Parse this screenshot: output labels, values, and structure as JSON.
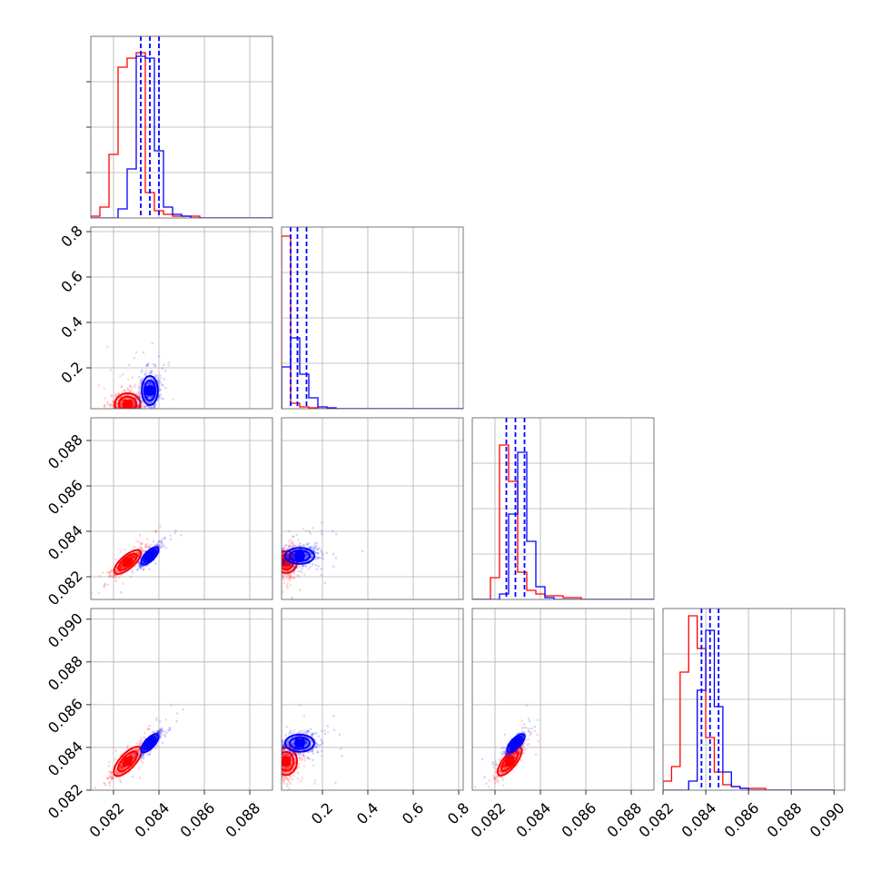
{
  "chart_data": {
    "type": "corner",
    "n_params": 4,
    "grid": true,
    "series": [
      {
        "color": "#ff0000"
      },
      {
        "color": "#0000ff"
      }
    ],
    "params": [
      {
        "range": [
          0.081,
          0.089
        ],
        "ticks": [
          0.082,
          0.084,
          0.086,
          0.088
        ],
        "tick_labels": [
          "0.082",
          "0.084",
          "0.086",
          "0.088"
        ]
      },
      {
        "range": [
          0.02,
          0.82
        ],
        "ticks": [
          0.2,
          0.4,
          0.6,
          0.8
        ],
        "tick_labels": [
          "0.2",
          "0.4",
          "0.6",
          "0.8"
        ]
      },
      {
        "range": [
          0.081,
          0.089
        ],
        "ticks": [
          0.082,
          0.084,
          0.086,
          0.088
        ],
        "tick_labels": [
          "0.082",
          "0.084",
          "0.086",
          "0.088"
        ]
      },
      {
        "range": [
          0.082,
          0.0905
        ],
        "ticks": [
          0.082,
          0.084,
          0.086,
          0.088,
          0.09
        ],
        "tick_labels": [
          "0.082",
          "0.084",
          "0.086",
          "0.088",
          "0.090"
        ]
      }
    ],
    "quantiles": [
      [
        0.0832,
        0.0836,
        0.084
      ],
      [
        0.06,
        0.09,
        0.13
      ],
      [
        0.0825,
        0.0829,
        0.0833
      ],
      [
        0.0838,
        0.0842,
        0.0846
      ]
    ],
    "histograms": [
      {
        "bins": [
          0.081,
          0.0814,
          0.0818,
          0.0822,
          0.0826,
          0.083,
          0.0834,
          0.0838,
          0.0842,
          0.0846,
          0.085,
          0.0854,
          0.0858,
          0.0862,
          0.0866,
          0.087,
          0.0874,
          0.0878,
          0.0882,
          0.0886,
          0.089
        ],
        "red": [
          0.01,
          0.06,
          0.35,
          0.83,
          0.88,
          0.91,
          0.14,
          0.04,
          0.02,
          0.01,
          0.01,
          0.01,
          0.0,
          0.0,
          0.0,
          0.0,
          0.0,
          0.0,
          0.0,
          0.0
        ],
        "blue": [
          0.0,
          0.0,
          0.0,
          0.05,
          0.27,
          0.89,
          0.88,
          0.37,
          0.06,
          0.02,
          0.01,
          0.0,
          0.0,
          0.0,
          0.0,
          0.0,
          0.0,
          0.0,
          0.0,
          0.0
        ]
      },
      {
        "bins": [
          0.02,
          0.06,
          0.1,
          0.14,
          0.18,
          0.22,
          0.26,
          0.3,
          0.34,
          0.38,
          0.42,
          0.46,
          0.5,
          0.54,
          0.58,
          0.62,
          0.66,
          0.7,
          0.74,
          0.78,
          0.82
        ],
        "red": [
          0.95,
          0.03,
          0.01,
          0.005,
          0.0,
          0.0,
          0.0,
          0.0,
          0.0,
          0.0,
          0.0,
          0.0,
          0.0,
          0.0,
          0.0,
          0.0,
          0.0,
          0.0,
          0.0,
          0.0
        ],
        "blue": [
          0.23,
          0.39,
          0.19,
          0.06,
          0.01,
          0.005,
          0.0,
          0.0,
          0.0,
          0.0,
          0.0,
          0.0,
          0.0,
          0.0,
          0.0,
          0.0,
          0.0,
          0.0,
          0.0,
          0.0
        ]
      },
      {
        "bins": [
          0.081,
          0.0814,
          0.0818,
          0.0822,
          0.0826,
          0.083,
          0.0834,
          0.0838,
          0.0842,
          0.0846,
          0.085,
          0.0854,
          0.0858,
          0.0862,
          0.0866,
          0.087,
          0.0874,
          0.0878,
          0.0882,
          0.0886,
          0.089
        ],
        "red": [
          0.0,
          0.0,
          0.12,
          0.85,
          0.65,
          0.15,
          0.05,
          0.03,
          0.02,
          0.02,
          0.01,
          0.01,
          0.0,
          0.0,
          0.0,
          0.0,
          0.0,
          0.0,
          0.0,
          0.0
        ],
        "blue": [
          0.0,
          0.0,
          0.0,
          0.03,
          0.47,
          0.81,
          0.32,
          0.07,
          0.01,
          0.0,
          0.0,
          0.0,
          0.0,
          0.0,
          0.0,
          0.0,
          0.0,
          0.0,
          0.0,
          0.0
        ]
      },
      {
        "bins": [
          0.082,
          0.0824,
          0.0828,
          0.0832,
          0.0836,
          0.084,
          0.0844,
          0.0848,
          0.0852,
          0.0856,
          0.086,
          0.0864,
          0.0868,
          0.0872,
          0.0876,
          0.088,
          0.0884,
          0.0888,
          0.0892,
          0.0896,
          0.09
        ],
        "red": [
          0.05,
          0.13,
          0.65,
          0.96,
          0.78,
          0.29,
          0.1,
          0.03,
          0.02,
          0.01,
          0.01,
          0.01,
          0.0,
          0.0,
          0.0,
          0.0,
          0.0,
          0.0,
          0.0,
          0.0
        ],
        "blue": [
          0.0,
          0.0,
          0.0,
          0.05,
          0.55,
          0.88,
          0.46,
          0.1,
          0.02,
          0.01,
          0.0,
          0.0,
          0.0,
          0.0,
          0.0,
          0.0,
          0.0,
          0.0,
          0.0,
          0.0
        ]
      }
    ],
    "densities": {
      "red": {
        "mean": [
          0.08262,
          0.04,
          0.08265,
          0.08335
        ],
        "sd": [
          0.00035,
          0.03,
          0.0003,
          0.0004
        ]
      },
      "blue": {
        "mean": [
          0.0836,
          0.1,
          0.08292,
          0.0842
        ],
        "sd": [
          0.00022,
          0.04,
          0.00022,
          0.00025
        ]
      }
    },
    "scatter_samples": 420,
    "contour_levels": [
      0.5,
      1.1,
      1.6
    ]
  }
}
